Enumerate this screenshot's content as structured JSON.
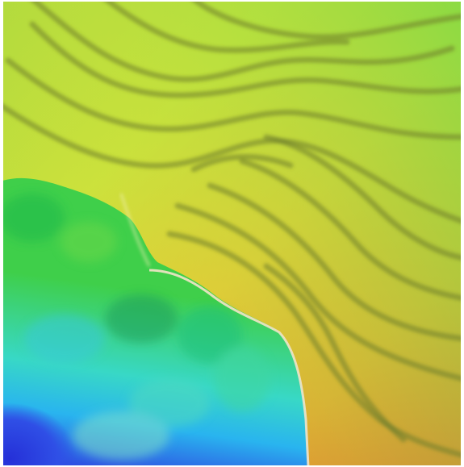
{
  "map": {
    "kind": "shaded-relief-elevation-map",
    "colormap": [
      "#2b3fe0",
      "#27c7e6",
      "#2fd35a",
      "#8fdc3a",
      "#d9e23a",
      "#f2a830",
      "#e84a2a"
    ],
    "contour_color": "#5a6a2a",
    "shoreline_color": "#f3e3c8"
  }
}
